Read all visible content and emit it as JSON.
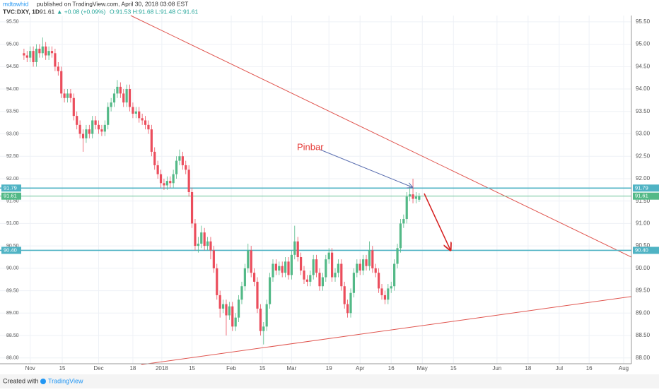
{
  "header": {
    "author": "mdtawhid",
    "published": "published on TradingView.com, April 30, 2018 03:08 EST",
    "symbol": "TVC:DXY, 1D",
    "last": "91.61",
    "change": "▲ +0.08 (+0.09%)",
    "ohlc": "O:91.53 H:91.68 L:91.48 C:91.61"
  },
  "footer": {
    "created": "Created with",
    "brand": "TradingView"
  },
  "chart_data": {
    "type": "candlestick",
    "up_color": "#53b987",
    "down_color": "#eb4d5c",
    "grid": true,
    "xlim": [
      -7.7,
      195.2
    ],
    "ylim": [
      87.87,
      95.64
    ],
    "xticks": [
      {
        "value": 2,
        "label": "Nov"
      },
      {
        "value": 12.3,
        "label": "15"
      },
      {
        "value": 24,
        "label": "Dec"
      },
      {
        "value": 35,
        "label": "18"
      },
      {
        "value": 44.3,
        "label": "2018"
      },
      {
        "value": 54,
        "label": "15"
      },
      {
        "value": 66.6,
        "label": "Feb"
      },
      {
        "value": 76.6,
        "label": "15"
      },
      {
        "value": 86,
        "label": "Mar"
      },
      {
        "value": 98,
        "label": "19"
      },
      {
        "value": 108,
        "label": "Apr"
      },
      {
        "value": 118,
        "label": "16"
      },
      {
        "value": 128,
        "label": "May"
      },
      {
        "value": 138,
        "label": "15"
      },
      {
        "value": 152,
        "label": "Jun"
      },
      {
        "value": 162,
        "label": "18"
      },
      {
        "value": 172,
        "label": "Jul"
      },
      {
        "value": 181.6,
        "label": "16"
      },
      {
        "value": 192.7,
        "label": "Aug"
      }
    ],
    "yticks": [
      {
        "value": 88,
        "label": "88.00"
      },
      {
        "value": 88.5,
        "label": "88.50"
      },
      {
        "value": 89,
        "label": "89.00"
      },
      {
        "value": 89.5,
        "label": "89.50"
      },
      {
        "value": 90,
        "label": "90.00"
      },
      {
        "value": 90.5,
        "label": "90.50"
      },
      {
        "value": 91,
        "label": "91.00"
      },
      {
        "value": 91.5,
        "label": "91.50"
      },
      {
        "value": 92,
        "label": "92.00"
      },
      {
        "value": 92.5,
        "label": "92.50"
      },
      {
        "value": 93,
        "label": "93.00"
      },
      {
        "value": 93.5,
        "label": "93.50"
      },
      {
        "value": 94,
        "label": "94.00"
      },
      {
        "value": 94.5,
        "label": "94.50"
      },
      {
        "value": 95,
        "label": "95.00"
      },
      {
        "value": 95.5,
        "label": "95.50"
      }
    ],
    "levels": [
      {
        "value": 91.79,
        "label": "91.79",
        "color": "#4fb3c4"
      },
      {
        "value": 91.61,
        "label": "91.61",
        "color": "#53b987"
      },
      {
        "value": 90.4,
        "label": "90.40",
        "color": "#4fb3c4"
      }
    ],
    "trendlines": [
      {
        "color": "#e0554f",
        "x": [
          34.3,
          195.2
        ],
        "y": [
          95.64,
          90.25
        ]
      },
      {
        "color": "#e0554f",
        "x": [
          37.7,
          195.2
        ],
        "y": [
          87.85,
          89.37
        ]
      }
    ],
    "annotation": "Pinbar",
    "open": [
      94.8,
      94.75,
      94.7,
      94.85,
      94.6,
      94.9,
      94.8,
      94.95,
      94.75,
      94.85,
      94.8,
      94.5,
      94.4,
      93.9,
      93.8,
      93.9,
      93.8,
      93.4,
      93.2,
      93.0,
      92.9,
      93.1,
      93.0,
      93.3,
      93.2,
      93.1,
      93.05,
      93.2,
      93.6,
      93.7,
      93.9,
      94.05,
      93.9,
      93.7,
      94.0,
      93.6,
      93.45,
      93.5,
      93.35,
      93.3,
      93.2,
      93.1,
      92.6,
      92.3,
      92.1,
      91.9,
      91.85,
      91.95,
      91.9,
      92.1,
      92.4,
      92.5,
      92.3,
      92.2,
      91.7,
      91.0,
      90.5,
      90.55,
      90.8,
      90.5,
      90.6,
      90.4,
      90.0,
      89.4,
      89.1,
      89.2,
      88.95,
      89.15,
      88.7,
      88.9,
      89.3,
      89.6,
      90.0,
      90.4,
      89.9,
      89.7,
      89.1,
      88.6,
      88.7,
      89.2,
      89.8,
      90.1,
      89.95,
      90.05,
      89.9,
      90.15,
      89.85,
      90.3,
      90.6,
      90.25,
      89.95,
      89.75,
      89.7,
      89.85,
      90.2,
      89.9,
      89.6,
      89.8,
      90.2,
      90.35,
      89.8,
      89.9,
      90.1,
      89.6,
      89.2,
      89.0,
      89.45,
      89.9,
      90.1,
      89.95,
      90.2,
      90.05,
      90.4,
      90.0,
      89.9,
      89.55,
      89.4,
      89.3,
      89.55,
      89.6,
      90.1,
      90.45,
      91.0,
      91.1,
      91.6,
      91.65,
      91.55,
      91.53
    ],
    "high": [
      94.9,
      94.85,
      94.95,
      94.95,
      95.0,
      95.0,
      95.15,
      95.05,
      94.95,
      94.95,
      94.9,
      94.6,
      94.5,
      94.0,
      94.0,
      94.0,
      93.9,
      93.5,
      93.3,
      93.1,
      93.2,
      93.2,
      93.4,
      93.4,
      93.3,
      93.2,
      93.3,
      93.7,
      93.8,
      94.0,
      94.2,
      94.15,
      94.0,
      94.1,
      94.1,
      93.7,
      93.6,
      93.6,
      93.45,
      93.4,
      93.3,
      93.2,
      92.7,
      92.4,
      92.2,
      92.0,
      92.05,
      92.05,
      92.2,
      92.5,
      92.65,
      92.6,
      92.4,
      92.3,
      91.8,
      91.1,
      90.7,
      90.95,
      90.9,
      90.7,
      90.7,
      90.5,
      90.1,
      89.5,
      89.3,
      89.3,
      89.25,
      89.25,
      89.0,
      89.4,
      89.7,
      90.1,
      90.55,
      90.5,
      90.0,
      89.8,
      89.2,
      88.8,
      89.3,
      89.9,
      90.2,
      90.2,
      90.15,
      90.15,
      90.25,
      90.25,
      90.4,
      90.95,
      90.7,
      90.35,
      90.05,
      89.85,
      89.95,
      90.3,
      90.3,
      90.0,
      89.9,
      90.3,
      90.45,
      90.45,
      90.0,
      90.2,
      90.2,
      89.7,
      89.3,
      89.55,
      90.0,
      90.2,
      90.2,
      90.3,
      90.3,
      90.6,
      90.5,
      90.1,
      90.0,
      89.65,
      89.5,
      89.65,
      89.7,
      90.2,
      90.55,
      91.1,
      91.2,
      91.7,
      91.85,
      92.0,
      91.7,
      91.68
    ],
    "low": [
      94.65,
      94.6,
      94.6,
      94.5,
      94.5,
      94.7,
      94.7,
      94.65,
      94.65,
      94.7,
      94.4,
      94.3,
      93.8,
      93.7,
      93.7,
      93.7,
      93.3,
      93.1,
      92.9,
      92.6,
      92.8,
      92.9,
      92.9,
      93.1,
      93.0,
      92.95,
      92.95,
      93.1,
      93.5,
      93.6,
      93.8,
      93.8,
      93.6,
      93.6,
      93.5,
      93.35,
      93.35,
      93.25,
      93.2,
      93.1,
      93.0,
      92.5,
      92.2,
      92.0,
      91.8,
      91.75,
      91.75,
      91.8,
      91.8,
      92.0,
      92.3,
      92.2,
      92.1,
      91.6,
      90.9,
      90.4,
      90.35,
      90.45,
      90.4,
      90.4,
      90.2,
      89.9,
      89.3,
      88.9,
      89.0,
      88.5,
      88.85,
      88.6,
      88.6,
      88.8,
      89.2,
      89.5,
      89.9,
      89.8,
      89.6,
      89.0,
      88.5,
      88.3,
      88.6,
      89.1,
      89.7,
      89.85,
      89.85,
      89.8,
      89.8,
      89.75,
      89.75,
      90.2,
      90.15,
      89.85,
      89.65,
      89.6,
      89.6,
      89.75,
      89.8,
      89.5,
      89.5,
      89.7,
      90.1,
      89.7,
      89.7,
      89.8,
      89.5,
      89.1,
      88.9,
      88.9,
      89.35,
      89.8,
      89.85,
      89.85,
      89.95,
      89.95,
      89.9,
      89.8,
      89.45,
      89.3,
      89.2,
      89.2,
      89.45,
      89.5,
      90.0,
      90.35,
      90.9,
      91.0,
      91.5,
      91.45,
      91.45,
      91.48
    ],
    "close": [
      94.75,
      94.7,
      94.85,
      94.6,
      94.9,
      94.8,
      94.95,
      94.75,
      94.85,
      94.8,
      94.5,
      94.4,
      93.9,
      93.8,
      93.9,
      93.8,
      93.4,
      93.2,
      93.0,
      92.9,
      93.1,
      93.0,
      93.3,
      93.2,
      93.1,
      93.05,
      93.2,
      93.6,
      93.7,
      93.9,
      94.05,
      93.9,
      93.7,
      94.0,
      93.6,
      93.45,
      93.5,
      93.35,
      93.3,
      93.2,
      93.1,
      92.6,
      92.3,
      92.1,
      91.9,
      91.85,
      91.95,
      91.9,
      92.1,
      92.4,
      92.5,
      92.3,
      92.2,
      91.7,
      91.0,
      90.5,
      90.55,
      90.8,
      90.5,
      90.6,
      90.4,
      90.0,
      89.4,
      89.1,
      89.2,
      88.95,
      89.15,
      88.7,
      88.9,
      89.3,
      89.6,
      90.0,
      90.4,
      89.9,
      89.7,
      89.1,
      88.6,
      88.7,
      89.2,
      89.8,
      90.1,
      89.95,
      90.05,
      89.9,
      90.15,
      89.85,
      90.3,
      90.6,
      90.25,
      89.95,
      89.75,
      89.7,
      89.85,
      90.2,
      89.9,
      89.6,
      89.8,
      90.2,
      90.35,
      89.8,
      89.9,
      90.1,
      89.6,
      89.2,
      89.0,
      89.45,
      89.9,
      90.1,
      89.95,
      90.2,
      90.05,
      90.4,
      90.0,
      89.9,
      89.55,
      89.4,
      89.3,
      89.55,
      89.6,
      90.1,
      90.45,
      91.0,
      91.1,
      91.6,
      91.65,
      91.55,
      91.6,
      91.61
    ]
  }
}
